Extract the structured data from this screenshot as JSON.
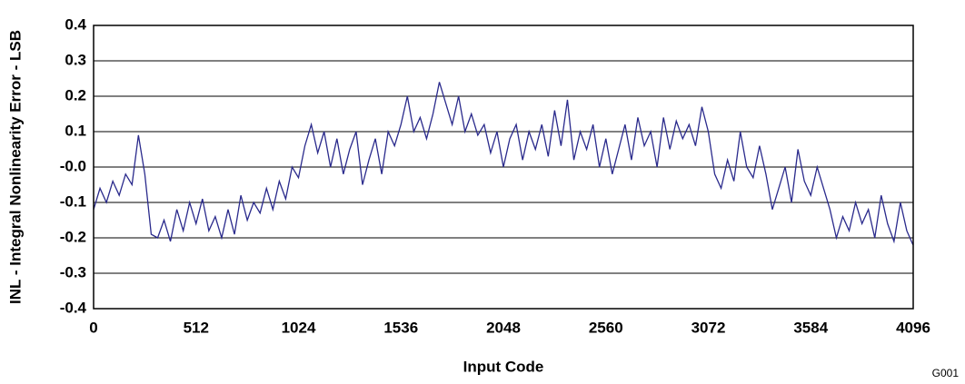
{
  "chart_data": {
    "type": "line",
    "x_label": "Input Code",
    "y_label": "INL - Integral Nonlinearity Error - LSB",
    "annotation": "G001",
    "xlim": [
      0,
      4096
    ],
    "xticks": [
      0,
      512,
      1024,
      1536,
      2048,
      2560,
      3072,
      3584,
      4096
    ],
    "ylim": [
      -0.4,
      0.4
    ],
    "yticks": [
      -0.4,
      -0.3,
      -0.2,
      -0.1,
      {
        "value": 0,
        "label": "-0.0"
      },
      0.1,
      0.2,
      0.3,
      0.4
    ],
    "grid": true,
    "series": [
      {
        "color": "#2a2a8c",
        "x": [
          0,
          32,
          64,
          96,
          128,
          160,
          192,
          224,
          256,
          288,
          320,
          352,
          384,
          416,
          448,
          480,
          512,
          544,
          576,
          608,
          640,
          672,
          704,
          736,
          768,
          800,
          832,
          864,
          896,
          928,
          960,
          992,
          1024,
          1056,
          1088,
          1120,
          1152,
          1184,
          1216,
          1248,
          1280,
          1312,
          1344,
          1376,
          1408,
          1440,
          1472,
          1504,
          1536,
          1568,
          1600,
          1632,
          1664,
          1696,
          1728,
          1760,
          1792,
          1824,
          1856,
          1888,
          1920,
          1952,
          1984,
          2016,
          2048,
          2080,
          2112,
          2144,
          2176,
          2208,
          2240,
          2272,
          2304,
          2336,
          2368,
          2400,
          2432,
          2464,
          2496,
          2528,
          2560,
          2592,
          2624,
          2656,
          2688,
          2720,
          2752,
          2784,
          2816,
          2848,
          2880,
          2912,
          2944,
          2976,
          3008,
          3040,
          3072,
          3104,
          3136,
          3168,
          3200,
          3232,
          3264,
          3296,
          3328,
          3360,
          3392,
          3424,
          3456,
          3488,
          3520,
          3552,
          3584,
          3616,
          3648,
          3680,
          3712,
          3744,
          3776,
          3808,
          3840,
          3872,
          3904,
          3936,
          3968,
          4000,
          4032,
          4064,
          4095
        ],
        "values": [
          -0.12,
          -0.06,
          -0.1,
          -0.04,
          -0.08,
          -0.02,
          -0.05,
          0.09,
          -0.02,
          -0.19,
          -0.2,
          -0.15,
          -0.21,
          -0.12,
          -0.18,
          -0.1,
          -0.16,
          -0.09,
          -0.18,
          -0.14,
          -0.2,
          -0.12,
          -0.19,
          -0.08,
          -0.15,
          -0.1,
          -0.13,
          -0.06,
          -0.12,
          -0.04,
          -0.09,
          0.0,
          -0.03,
          0.06,
          0.12,
          0.04,
          0.1,
          0.0,
          0.08,
          -0.02,
          0.05,
          0.1,
          -0.05,
          0.02,
          0.08,
          -0.02,
          0.1,
          0.06,
          0.12,
          0.2,
          0.1,
          0.14,
          0.08,
          0.15,
          0.24,
          0.18,
          0.12,
          0.2,
          0.1,
          0.15,
          0.09,
          0.12,
          0.04,
          0.1,
          0.0,
          0.08,
          0.12,
          0.02,
          0.1,
          0.05,
          0.12,
          0.03,
          0.16,
          0.06,
          0.19,
          0.02,
          0.1,
          0.05,
          0.12,
          0.0,
          0.08,
          -0.02,
          0.05,
          0.12,
          0.02,
          0.14,
          0.06,
          0.1,
          0.0,
          0.14,
          0.05,
          0.13,
          0.08,
          0.12,
          0.06,
          0.17,
          0.1,
          -0.02,
          -0.06,
          0.02,
          -0.04,
          0.1,
          0.0,
          -0.03,
          0.06,
          -0.02,
          -0.12,
          -0.06,
          0.0,
          -0.1,
          0.05,
          -0.04,
          -0.08,
          0.0,
          -0.06,
          -0.12,
          -0.2,
          -0.14,
          -0.18,
          -0.1,
          -0.16,
          -0.12,
          -0.2,
          -0.08,
          -0.16,
          -0.21,
          -0.1,
          -0.18,
          -0.22
        ]
      }
    ]
  }
}
